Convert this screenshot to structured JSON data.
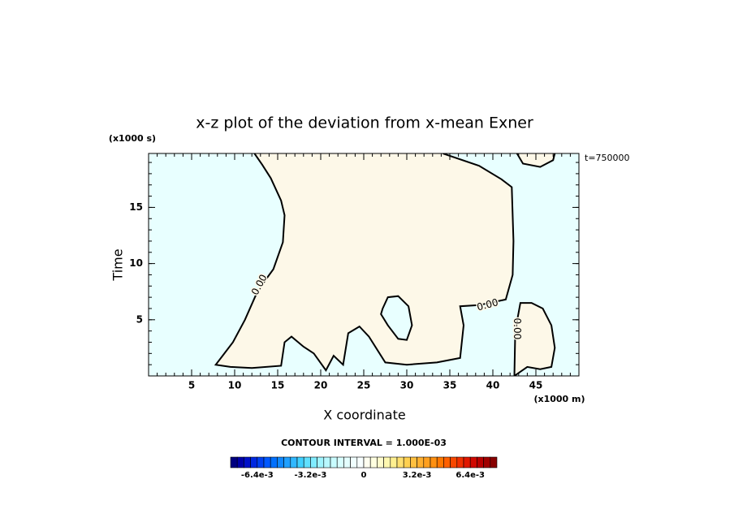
{
  "chart_data": {
    "type": "contour",
    "title": "x-z plot of the deviation from x-mean Exner",
    "x_label": "X coordinate",
    "y_label": "Time",
    "x_unit": "(x1000 m)",
    "y_unit": "(x1000 s)",
    "annotation": "t=750000",
    "xlim": [
      0,
      50
    ],
    "ylim": [
      0,
      19.8
    ],
    "xticks": [
      5,
      10,
      15,
      20,
      25,
      30,
      35,
      40,
      45
    ],
    "yticks": [
      5,
      10,
      15
    ],
    "x_minor_step": 1,
    "y_minor_step": 1,
    "background": "#e8ffff",
    "regions": [
      {
        "fill": "#fdf8e8",
        "closed": false,
        "x": [
          12.3,
          13.2,
          14.2,
          15.4,
          15.8,
          15.6,
          14.5,
          12.7,
          11.2,
          9.8,
          8.6,
          7.8,
          9.5,
          12.0,
          15.4,
          15.8,
          16.6,
          18.0,
          19.2,
          20.6,
          21.5,
          22.6,
          23.2,
          24.5,
          25.6,
          27.5,
          30.0,
          33.5,
          36.2,
          36.6,
          36.2,
          38.4,
          41.5,
          42.3,
          42.4,
          42.2,
          41.0,
          38.4,
          34.2
        ],
        "y": [
          19.8,
          18.8,
          17.6,
          15.6,
          14.3,
          11.9,
          9.5,
          7.6,
          5.0,
          3.0,
          1.8,
          1.0,
          0.8,
          0.7,
          0.9,
          3.0,
          3.5,
          2.6,
          2.0,
          0.5,
          1.8,
          1.0,
          3.8,
          4.4,
          3.5,
          1.2,
          1.0,
          1.2,
          1.6,
          4.5,
          6.2,
          6.3,
          6.8,
          9.0,
          12.0,
          16.8,
          17.5,
          18.7,
          19.8
        ]
      },
      {
        "fill": "#e8ffff",
        "closed": true,
        "x": [
          27.2,
          27.8,
          29.0,
          30.2,
          30.6,
          30.0,
          29.0,
          27.8,
          27.0
        ],
        "y": [
          6.0,
          7.0,
          7.1,
          6.2,
          4.5,
          3.2,
          3.3,
          4.5,
          5.5
        ]
      },
      {
        "fill": "#fdf8e8",
        "closed": false,
        "x": [
          42.5,
          42.6,
          43.2,
          44.5,
          45.8,
          46.8,
          47.2,
          46.8,
          45.5,
          44.0,
          42.5
        ],
        "y": [
          0,
          4.0,
          6.5,
          6.5,
          6.0,
          4.5,
          2.5,
          0.8,
          0.6,
          0.8,
          0
        ]
      },
      {
        "fill": "#fdf8e8",
        "closed": false,
        "x": [
          42.8,
          43.5,
          45.5,
          47.0,
          47.2
        ],
        "y": [
          19.8,
          18.9,
          18.6,
          19.2,
          19.8
        ]
      }
    ],
    "contour_labels": [
      {
        "text": "0.00",
        "x": 12.9,
        "y": 8.1
      },
      {
        "text": "0.00",
        "x": 39.4,
        "y": 6.3
      },
      {
        "text": "0.00",
        "x": 42.8,
        "y": 4.2
      }
    ],
    "colorbar": {
      "label": "CONTOUR INTERVAL = 1.000E-03",
      "lim": [
        -0.008,
        0.008
      ],
      "ticks": [
        {
          "value": -0.0064,
          "label": "-6.4e-3"
        },
        {
          "value": -0.0032,
          "label": "-3.2e-3"
        },
        0,
        {
          "value": 0.0032,
          "label": "3.2e-3"
        },
        {
          "value": 0.0064,
          "label": "6.4e-3"
        }
      ],
      "colors": [
        "#000080",
        "#0000a8",
        "#0010c8",
        "#0028e0",
        "#0040f0",
        "#0058ff",
        "#0070ff",
        "#1088ff",
        "#20a0ff",
        "#30b8ff",
        "#40d0ff",
        "#60e0ff",
        "#80ecff",
        "#a0f4ff",
        "#b8f8ff",
        "#c8fcff",
        "#d8ffff",
        "#e4ffff",
        "#f0ffff",
        "#f8ffff",
        "#fffff0",
        "#ffffe0",
        "#fffccc",
        "#fff8b0",
        "#fff090",
        "#ffe070",
        "#ffd050",
        "#ffc040",
        "#ffb030",
        "#ffa020",
        "#ff9010",
        "#ff7800",
        "#ff6000",
        "#f84800",
        "#f03000",
        "#e01800",
        "#d00800",
        "#b80000",
        "#a00000",
        "#880000"
      ]
    }
  }
}
